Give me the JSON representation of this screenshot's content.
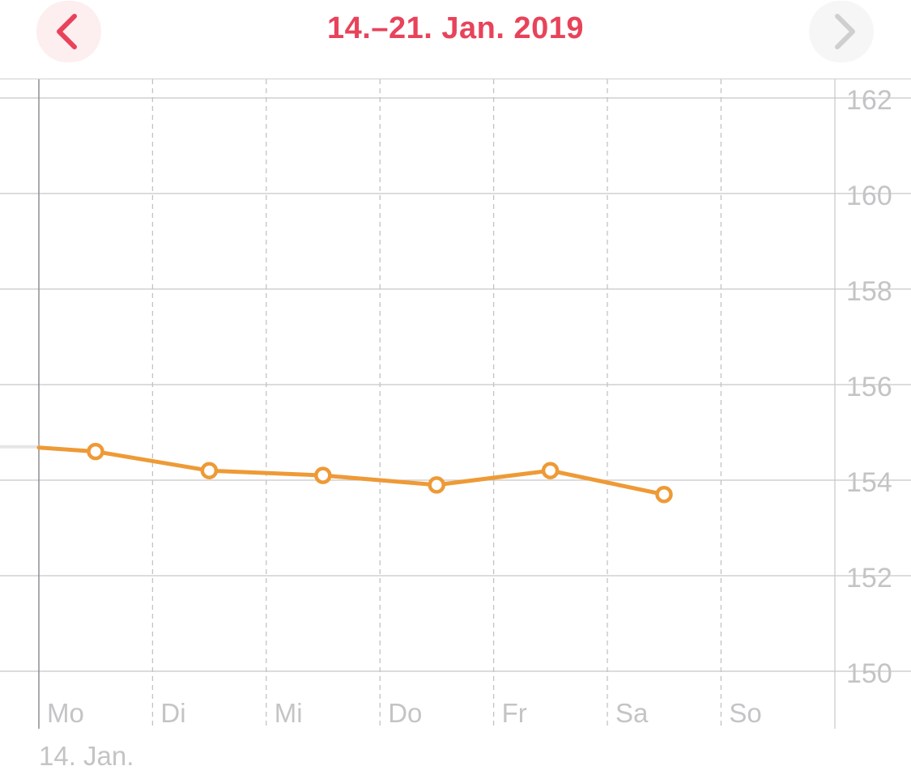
{
  "header": {
    "title": "14.–21. Jan. 2019",
    "prev_icon": "chevron-left-icon",
    "next_icon": "chevron-right-icon"
  },
  "colors": {
    "accent": "#e8435a",
    "series": "#ee9a36",
    "previous_period_line": "#e6e6e6",
    "grid": "#c8c8c8",
    "label": "#c4c4c6"
  },
  "chart_data": {
    "type": "line",
    "categories": [
      "Mo",
      "Di",
      "Mi",
      "Do",
      "Fr",
      "Sa",
      "So"
    ],
    "start_date_label": "14. Jan.",
    "ylim": [
      150,
      162
    ],
    "yticks": [
      150,
      152,
      154,
      156,
      158,
      160,
      162
    ],
    "grid": true,
    "y_axis_position": "right",
    "series": [
      {
        "points": [
          {
            "x": "Mo",
            "y": 154.6
          },
          {
            "x": "Di",
            "y": 154.2
          },
          {
            "x": "Mi",
            "y": 154.1
          },
          {
            "x": "Do",
            "y": 153.9
          },
          {
            "x": "Fr",
            "y": 154.2
          },
          {
            "x": "Sa",
            "y": 153.7
          }
        ]
      }
    ],
    "previous_period_end_value": 154.7
  }
}
